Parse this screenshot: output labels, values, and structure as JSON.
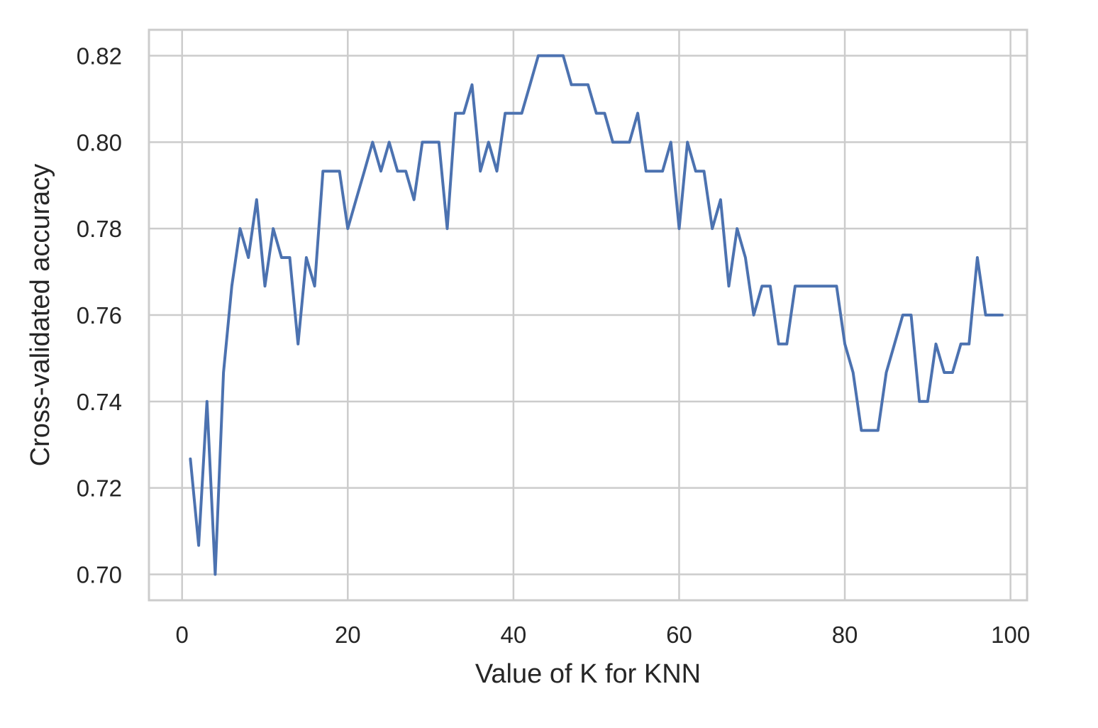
{
  "chart_data": {
    "type": "line",
    "title": "",
    "xlabel": "Value of K for KNN",
    "ylabel": "Cross-validated accuracy",
    "xlim": [
      -4,
      102
    ],
    "ylim": [
      0.694,
      0.826
    ],
    "xticks": [
      0,
      20,
      40,
      60,
      80,
      100
    ],
    "xtick_labels": [
      "0",
      "20",
      "40",
      "60",
      "80",
      "100"
    ],
    "yticks": [
      0.7,
      0.72,
      0.74,
      0.76,
      0.78,
      0.8,
      0.82
    ],
    "ytick_labels": [
      "0.70",
      "0.72",
      "0.74",
      "0.76",
      "0.78",
      "0.80",
      "0.82"
    ],
    "grid": true,
    "legend": "none",
    "series": [
      {
        "color": "#4c72b0",
        "x": [
          1,
          2,
          3,
          4,
          5,
          6,
          7,
          8,
          9,
          10,
          11,
          12,
          13,
          14,
          15,
          16,
          17,
          18,
          19,
          20,
          21,
          22,
          23,
          24,
          25,
          26,
          27,
          28,
          29,
          30,
          31,
          32,
          33,
          34,
          35,
          36,
          37,
          38,
          39,
          40,
          41,
          42,
          43,
          44,
          45,
          46,
          47,
          48,
          49,
          50,
          51,
          52,
          53,
          54,
          55,
          56,
          57,
          58,
          59,
          60,
          61,
          62,
          63,
          64,
          65,
          66,
          67,
          68,
          69,
          70,
          71,
          72,
          73,
          74,
          75,
          76,
          77,
          78,
          79,
          80,
          81,
          82,
          83,
          84,
          85,
          86,
          87,
          88,
          89,
          90,
          91,
          92,
          93,
          94,
          95,
          96,
          97,
          98,
          99
        ],
        "y": [
          0.7267,
          0.7067,
          0.74,
          0.7,
          0.7467,
          0.7667,
          0.78,
          0.7733,
          0.7867,
          0.7667,
          0.78,
          0.7733,
          0.7733,
          0.7533,
          0.7733,
          0.7667,
          0.7933,
          0.7933,
          0.7933,
          0.78,
          0.7867,
          0.7933,
          0.8,
          0.7933,
          0.8,
          0.7933,
          0.7933,
          0.7867,
          0.8,
          0.8,
          0.8,
          0.78,
          0.8067,
          0.8067,
          0.8133,
          0.7933,
          0.8,
          0.7933,
          0.8067,
          0.8067,
          0.8067,
          0.8133,
          0.82,
          0.82,
          0.82,
          0.82,
          0.8133,
          0.8133,
          0.8133,
          0.8067,
          0.8067,
          0.8,
          0.8,
          0.8,
          0.8067,
          0.7933,
          0.7933,
          0.7933,
          0.8,
          0.78,
          0.8,
          0.7933,
          0.7933,
          0.78,
          0.7867,
          0.7667,
          0.78,
          0.7733,
          0.76,
          0.7667,
          0.7667,
          0.7533,
          0.7533,
          0.7667,
          0.7667,
          0.7667,
          0.7667,
          0.7667,
          0.7667,
          0.7533,
          0.7467,
          0.7333,
          0.7333,
          0.7333,
          0.7467,
          0.7533,
          0.76,
          0.76,
          0.74,
          0.74,
          0.7533,
          0.7467,
          0.7467,
          0.7533,
          0.7533,
          0.7733,
          0.76,
          0.76,
          0.76
        ]
      }
    ]
  }
}
